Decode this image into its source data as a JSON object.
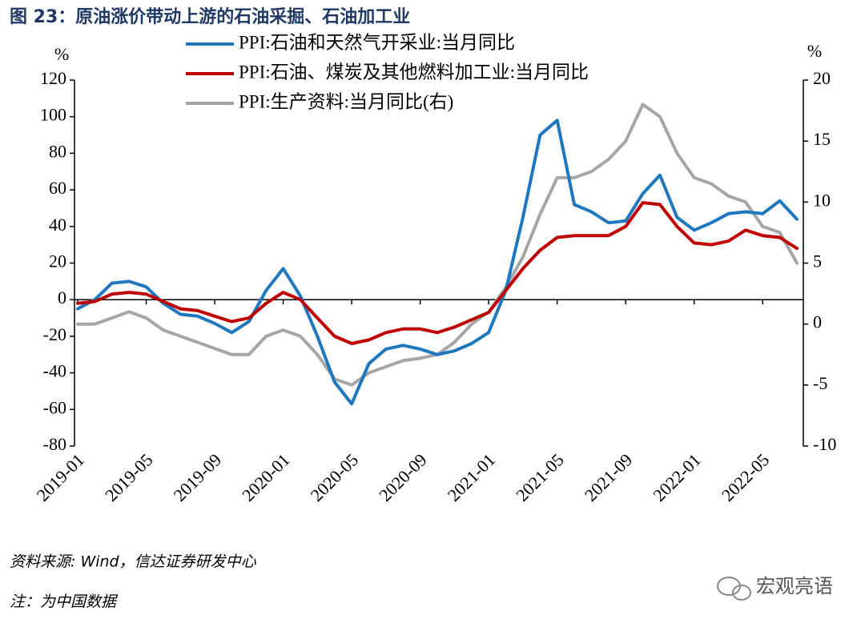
{
  "chart_data": {
    "type": "line",
    "title": "图 23：原油涨价带动上游的石油采掘、石油加工业",
    "y_label": "%",
    "y2_label": "%",
    "categories": [
      "2019-01",
      null,
      null,
      null,
      "2019-05",
      null,
      null,
      null,
      "2019-09",
      null,
      null,
      null,
      "2020-01",
      null,
      null,
      null,
      "2020-05",
      null,
      null,
      null,
      "2020-09",
      null,
      null,
      null,
      "2021-01",
      null,
      null,
      null,
      "2021-05",
      null,
      null,
      null,
      "2021-09",
      null,
      null,
      null,
      "2022-01",
      null,
      null,
      null,
      "2022-05",
      null,
      null
    ],
    "series": [
      {
        "name": "PPI:石油和天然气开采业:当月同比",
        "color": "#1f77c0",
        "values": [
          -5,
          0,
          9,
          10,
          7,
          -2,
          -8,
          -9,
          -13,
          -18,
          -12,
          5,
          17,
          2,
          -20,
          -45,
          -57,
          -35,
          -27,
          -25,
          -27,
          -30,
          -28,
          -24,
          -18,
          5,
          45,
          90,
          98,
          52,
          48,
          42,
          43,
          58,
          68,
          45,
          38,
          42,
          47,
          48,
          47,
          54,
          44
        ]
      },
      {
        "name": "PPI:石油、煤炭及其他燃料加工业:当月同比",
        "color": "#c00000",
        "values": [
          -2,
          -1,
          3,
          4,
          3,
          -1,
          -5,
          -6,
          -9,
          -12,
          -10,
          -2,
          4,
          0,
          -10,
          -20,
          -24,
          -22,
          -18,
          -16,
          -16,
          -18,
          -15,
          -11,
          -7,
          5,
          17,
          27,
          34,
          35,
          35,
          35,
          40,
          53,
          52,
          40,
          31,
          30,
          32,
          38,
          35,
          34,
          28
        ]
      },
      {
        "name": "PPI:生产资料:当月同比(右)",
        "color": "#a6a6a6",
        "axis": "y2",
        "values": [
          0,
          0,
          0.5,
          1,
          0.5,
          -0.5,
          -1,
          -1.5,
          -2,
          -2.5,
          -2.5,
          -1,
          -0.5,
          -1,
          -2.5,
          -4.5,
          -5,
          -4,
          -3.5,
          -3,
          -2.8,
          -2.5,
          -1.5,
          0,
          1,
          3,
          5.5,
          9,
          12,
          12,
          12.5,
          13.5,
          15,
          18,
          17,
          14,
          12,
          11.5,
          10.5,
          10,
          8,
          7.5,
          5
        ]
      }
    ],
    "ylim": [
      -80,
      120
    ],
    "yticks": [
      -80,
      -60,
      -40,
      -20,
      0,
      20,
      40,
      60,
      80,
      100,
      120
    ],
    "y2lim": [
      -10,
      20
    ],
    "y2ticks": [
      -10,
      -5,
      0,
      5,
      10,
      15,
      20
    ],
    "source": "资料来源: Wind，信达证券研发中心",
    "note": "注：为中国数据",
    "watermark": "宏观亮语"
  }
}
